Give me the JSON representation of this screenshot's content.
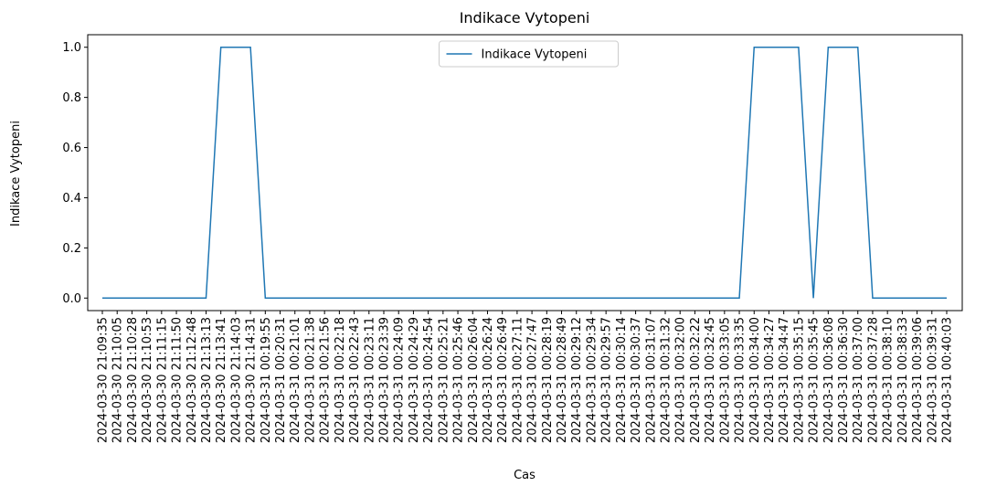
{
  "chart_data": {
    "type": "line",
    "title": "Indikace Vytopeni",
    "xlabel": "Cas",
    "ylabel": "Indikace Vytopeni",
    "x": [
      "2024-03-30 21:09:35",
      "2024-03-30 21:10:05",
      "2024-03-30 21:10:28",
      "2024-03-30 21:10:53",
      "2024-03-30 21:11:15",
      "2024-03-30 21:11:50",
      "2024-03-30 21:12:48",
      "2024-03-30 21:13:13",
      "2024-03-30 21:13:41",
      "2024-03-30 21:14:03",
      "2024-03-30 21:14:31",
      "2024-03-31 00:19:55",
      "2024-03-31 00:20:31",
      "2024-03-31 00:21:01",
      "2024-03-31 00:21:38",
      "2024-03-31 00:21:56",
      "2024-03-31 00:22:18",
      "2024-03-31 00:22:43",
      "2024-03-31 00:23:11",
      "2024-03-31 00:23:39",
      "2024-03-31 00:24:09",
      "2024-03-31 00:24:29",
      "2024-03-31 00:24:54",
      "2024-03-31 00:25:21",
      "2024-03-31 00:25:46",
      "2024-03-31 00:26:04",
      "2024-03-31 00:26:24",
      "2024-03-31 00:26:49",
      "2024-03-31 00:27:11",
      "2024-03-31 00:27:47",
      "2024-03-31 00:28:19",
      "2024-03-31 00:28:49",
      "2024-03-31 00:29:12",
      "2024-03-31 00:29:34",
      "2024-03-31 00:29:57",
      "2024-03-31 00:30:14",
      "2024-03-31 00:30:37",
      "2024-03-31 00:31:07",
      "2024-03-31 00:31:32",
      "2024-03-31 00:32:00",
      "2024-03-31 00:32:22",
      "2024-03-31 00:32:45",
      "2024-03-31 00:33:05",
      "2024-03-31 00:33:35",
      "2024-03-31 00:34:00",
      "2024-03-31 00:34:27",
      "2024-03-31 00:34:47",
      "2024-03-31 00:35:15",
      "2024-03-31 00:35:45",
      "2024-03-31 00:36:08",
      "2024-03-31 00:36:30",
      "2024-03-31 00:37:00",
      "2024-03-31 00:37:28",
      "2024-03-31 00:38:10",
      "2024-03-31 00:38:33",
      "2024-03-31 00:39:06",
      "2024-03-31 00:39:31",
      "2024-03-31 00:40:03"
    ],
    "series": [
      {
        "name": "Indikace Vytopeni",
        "color": "#1f77b4",
        "values": [
          0,
          0,
          0,
          0,
          0,
          0,
          0,
          0,
          1,
          1,
          1,
          0,
          0,
          0,
          0,
          0,
          0,
          0,
          0,
          0,
          0,
          0,
          0,
          0,
          0,
          0,
          0,
          0,
          0,
          0,
          0,
          0,
          0,
          0,
          0,
          0,
          0,
          0,
          0,
          0,
          0,
          0,
          0,
          0,
          1,
          1,
          1,
          1,
          0,
          1,
          1,
          1,
          0,
          0,
          0,
          0,
          0,
          0
        ]
      }
    ],
    "ylim": [
      -0.05,
      1.05
    ],
    "yticks": [
      {
        "value": 0,
        "label": "0.0"
      },
      {
        "value": 0.2,
        "label": "0.2"
      },
      {
        "value": 0.4,
        "label": "0.4"
      },
      {
        "value": 0.6,
        "label": "0.6"
      },
      {
        "value": 0.8,
        "label": "0.8"
      },
      {
        "value": 1,
        "label": "1.0"
      }
    ],
    "legend": "upper center",
    "grid": false
  }
}
